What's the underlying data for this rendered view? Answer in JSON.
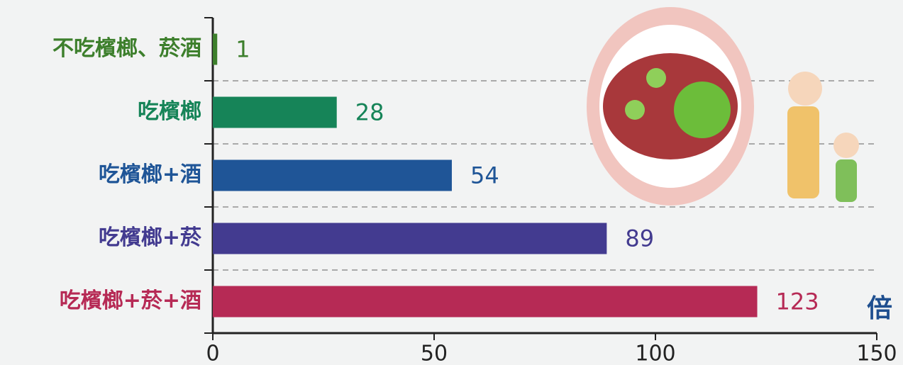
{
  "chart_data": {
    "type": "bar",
    "orientation": "horizontal",
    "categories": [
      "不吃檳榔、菸酒",
      "吃檳榔",
      "吃檳榔+酒",
      "吃檳榔+菸",
      "吃檳榔+菸+酒"
    ],
    "values": [
      1,
      28,
      54,
      89,
      123
    ],
    "colors": [
      "#3d7f2c",
      "#168458",
      "#1f5597",
      "#433b90",
      "#b62a55"
    ],
    "xlim": [
      0,
      150
    ],
    "xticks": [
      0,
      50,
      100,
      150
    ],
    "unit": "倍"
  }
}
